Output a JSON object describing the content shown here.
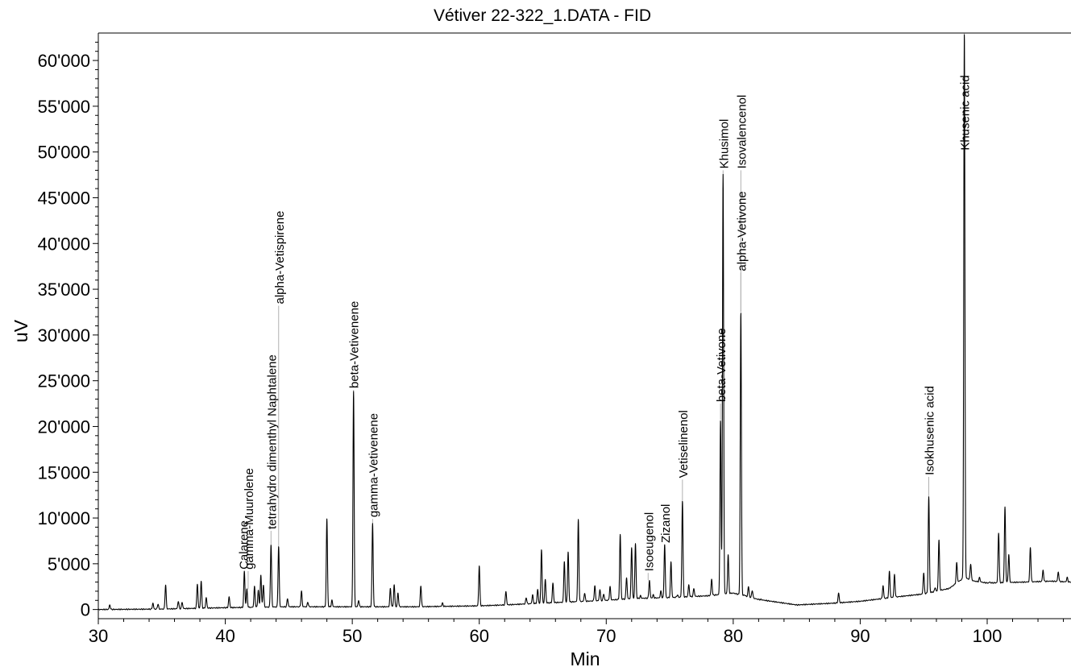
{
  "chart_data": {
    "type": "line",
    "title": "Vétiver 22-322_1.DATA - FID",
    "xlabel": "Min",
    "ylabel": "uV",
    "xlim": [
      30,
      106.6
    ],
    "ylim": [
      -1000,
      63000
    ],
    "grid": false,
    "legend": "none",
    "x_ticks": [
      30,
      40,
      50,
      60,
      70,
      80,
      90,
      100
    ],
    "x_tick_labels": [
      "30",
      "40",
      "50",
      "60",
      "70",
      "80",
      "90",
      "100"
    ],
    "y_ticks": [
      0,
      5000,
      10000,
      15000,
      20000,
      25000,
      30000,
      35000,
      40000,
      45000,
      50000,
      55000,
      60000
    ],
    "y_tick_labels": [
      "0",
      "5'000",
      "10'000",
      "15'000",
      "20'000",
      "25'000",
      "30'000",
      "35'000",
      "40'000",
      "45'000",
      "50'000",
      "55'000",
      "60'000"
    ],
    "line_color": "#000000",
    "baseline": [
      [
        30,
        0
      ],
      [
        35,
        50
      ],
      [
        40,
        200
      ],
      [
        45,
        300
      ],
      [
        50,
        300
      ],
      [
        55,
        300
      ],
      [
        60,
        400
      ],
      [
        62,
        500
      ],
      [
        65,
        700
      ],
      [
        70,
        1000
      ],
      [
        72,
        1200
      ],
      [
        75,
        1300
      ],
      [
        78,
        1500
      ],
      [
        80,
        1800
      ],
      [
        82,
        1100
      ],
      [
        85,
        500
      ],
      [
        88,
        700
      ],
      [
        90,
        900
      ],
      [
        93,
        1400
      ],
      [
        95,
        1700
      ],
      [
        97,
        2300
      ],
      [
        98.2,
        3500
      ],
      [
        99,
        3100
      ],
      [
        100,
        2900
      ],
      [
        103,
        3000
      ],
      [
        105,
        3100
      ],
      [
        106.6,
        3000
      ]
    ],
    "peaks": [
      [
        30.9,
        500
      ],
      [
        34.3,
        700
      ],
      [
        34.7,
        600
      ],
      [
        35.3,
        2700
      ],
      [
        36.3,
        900
      ],
      [
        36.6,
        800
      ],
      [
        37.8,
        2800
      ],
      [
        38.1,
        3100
      ],
      [
        38.5,
        1300
      ],
      [
        40.3,
        1400
      ],
      [
        41.5,
        4200
      ],
      [
        41.7,
        2200
      ],
      [
        42.3,
        2500
      ],
      [
        42.6,
        2100
      ],
      [
        42.8,
        3800
      ],
      [
        43.0,
        2700
      ],
      [
        43.6,
        7100
      ],
      [
        44.2,
        6900
      ],
      [
        44.9,
        1200
      ],
      [
        46.0,
        2000
      ],
      [
        46.5,
        800
      ],
      [
        48.0,
        9900
      ],
      [
        48.4,
        1000
      ],
      [
        50.1,
        23900
      ],
      [
        50.5,
        1000
      ],
      [
        51.6,
        9400
      ],
      [
        53.0,
        2300
      ],
      [
        53.3,
        2700
      ],
      [
        53.6,
        1800
      ],
      [
        55.4,
        2600
      ],
      [
        57.1,
        700
      ],
      [
        60.0,
        4800
      ],
      [
        62.1,
        2000
      ],
      [
        63.7,
        1300
      ],
      [
        64.2,
        1600
      ],
      [
        64.6,
        2200
      ],
      [
        64.9,
        6600
      ],
      [
        65.2,
        3300
      ],
      [
        65.8,
        2900
      ],
      [
        66.7,
        5300
      ],
      [
        67.0,
        6300
      ],
      [
        67.8,
        9800
      ],
      [
        68.3,
        1800
      ],
      [
        69.1,
        2600
      ],
      [
        69.5,
        2200
      ],
      [
        69.8,
        1700
      ],
      [
        70.3,
        2500
      ],
      [
        71.1,
        8200
      ],
      [
        71.6,
        3500
      ],
      [
        72.0,
        6800
      ],
      [
        72.3,
        7200
      ],
      [
        72.7,
        1500
      ],
      [
        73.4,
        3200
      ],
      [
        73.7,
        1600
      ],
      [
        74.3,
        2000
      ],
      [
        74.6,
        7100
      ],
      [
        75.1,
        5200
      ],
      [
        75.6,
        1600
      ],
      [
        76.0,
        11900
      ],
      [
        76.5,
        2700
      ],
      [
        76.9,
        2300
      ],
      [
        77.6,
        1400
      ],
      [
        78.3,
        3300
      ],
      [
        79.0,
        20700
      ],
      [
        79.2,
        47500
      ],
      [
        79.6,
        6000
      ],
      [
        80.6,
        32500
      ],
      [
        80.9,
        1600
      ],
      [
        81.2,
        2500
      ],
      [
        81.5,
        2100
      ],
      [
        82.2,
        1100
      ],
      [
        88.3,
        1800
      ],
      [
        91.8,
        2600
      ],
      [
        92.3,
        4200
      ],
      [
        92.7,
        3800
      ],
      [
        93.6,
        1400
      ],
      [
        95.0,
        4000
      ],
      [
        95.4,
        12300
      ],
      [
        95.9,
        2400
      ],
      [
        96.2,
        7600
      ],
      [
        97.6,
        5100
      ],
      [
        98.2,
        63000
      ],
      [
        98.7,
        5000
      ],
      [
        99.4,
        3500
      ],
      [
        100.2,
        3000
      ],
      [
        100.9,
        8400
      ],
      [
        101.4,
        11200
      ],
      [
        101.7,
        6000
      ],
      [
        103.4,
        6800
      ],
      [
        104.4,
        4300
      ],
      [
        105.6,
        4100
      ],
      [
        106.3,
        3500
      ]
    ],
    "annotations": [
      {
        "label": "Calarene",
        "x": 41.4,
        "top": 4200
      },
      {
        "label": "gamma-Muurolene",
        "x": 41.8,
        "top": 4200
      },
      {
        "label": "tetrahydro dimenthyl Naphtalene",
        "x": 43.6,
        "top": 8600
      },
      {
        "label": "alpha-Vetispirene",
        "x": 44.2,
        "top": 33200
      },
      {
        "label": "beta-Vetivenene",
        "x": 50.1,
        "top": 24000
      },
      {
        "label": "gamma-Vetivenene",
        "x": 51.6,
        "top": 9900
      },
      {
        "label": "Isoeugenol",
        "x": 73.3,
        "top": 4000
      },
      {
        "label": "Zizanol",
        "x": 74.6,
        "top": 7100
      },
      {
        "label": "Vetiselinenol",
        "x": 76.0,
        "top": 14200
      },
      {
        "label": "beta-Vetivone",
        "x": 79.0,
        "top": 22500
      },
      {
        "label": "Khusimol",
        "x": 79.2,
        "top": 48000
      },
      {
        "label": "Isovalencenol",
        "x": 80.6,
        "top": 48000
      },
      {
        "label": "alpha-Vetivone",
        "x": 80.6,
        "top": 36800
      },
      {
        "label": "Isokhusenic acid",
        "x": 95.4,
        "top": 14500
      },
      {
        "label": "Khusenic acid",
        "x": 98.2,
        "top": 50000
      }
    ]
  }
}
